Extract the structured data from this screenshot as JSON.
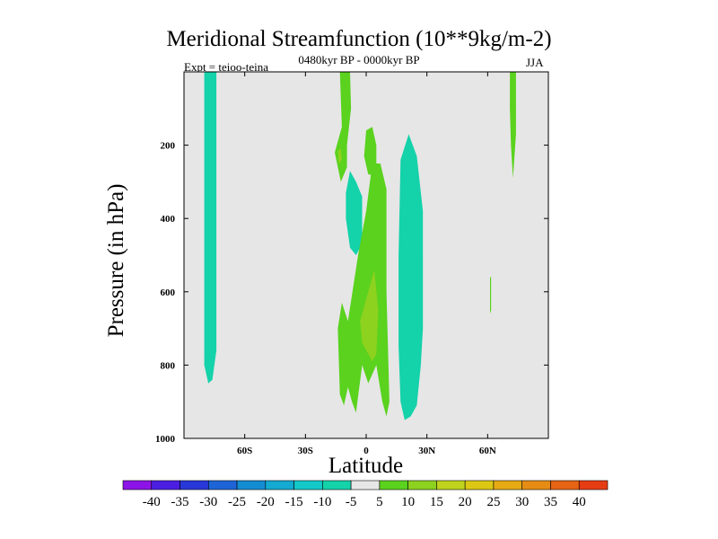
{
  "chart_data": {
    "type": "heatmap",
    "title": "Meridional Streamfunction (10**9kg/m-2)",
    "subtitle": "0480kyr BP - 0000kyr BP",
    "left_string": "Expt = teioo-teina",
    "right_string": "JJA",
    "xlabel": "Latitude",
    "ylabel": "Pressure (in hPa)",
    "xlim": [
      -90,
      90
    ],
    "ylim": [
      1000,
      0
    ],
    "x_ticks": [
      {
        "value": -60,
        "label": "60S"
      },
      {
        "value": -30,
        "label": "30S"
      },
      {
        "value": 0,
        "label": "0"
      },
      {
        "value": 30,
        "label": "30N"
      },
      {
        "value": 60,
        "label": "60N"
      }
    ],
    "y_ticks": [
      {
        "value": 200,
        "label": "200"
      },
      {
        "value": 400,
        "label": "400"
      },
      {
        "value": 600,
        "label": "600"
      },
      {
        "value": 800,
        "label": "800"
      },
      {
        "value": 1000,
        "label": "1000"
      }
    ],
    "background_color": "#e6e6e6",
    "colorbar": {
      "levels": [
        "-40",
        "-35",
        "-30",
        "-25",
        "-20",
        "-15",
        "-10",
        "-5",
        "5",
        "10",
        "15",
        "20",
        "25",
        "30",
        "35",
        "40"
      ],
      "colors": [
        "#8c14e6",
        "#4b1ee1",
        "#2837d7",
        "#1e64d7",
        "#148cd2",
        "#14aad2",
        "#14c8c8",
        "#14d2aa",
        "#e6e6e6",
        "#5ad21e",
        "#8cd21e",
        "#bed21e",
        "#dcc814",
        "#e6aa14",
        "#e68c14",
        "#e66414",
        "#e63c14"
      ]
    },
    "regions": [
      {
        "name": "contour-neg-60s-column",
        "value": -10,
        "color": "#14d2aa",
        "points": [
          [
            -80,
            0
          ],
          [
            -74,
            0
          ],
          [
            -74,
            760
          ],
          [
            -76,
            840
          ],
          [
            -78,
            850
          ],
          [
            -80,
            800
          ]
        ]
      },
      {
        "name": "contour-pos-15s-upper-column",
        "value": 5,
        "color": "#5ad21e",
        "points": [
          [
            -13,
            0
          ],
          [
            -8,
            0
          ],
          [
            -7.5,
            100
          ],
          [
            -9.5,
            200
          ],
          [
            -9.5,
            260
          ],
          [
            -12.5,
            300
          ],
          [
            -15.5,
            220
          ],
          [
            -12,
            150
          ]
        ]
      },
      {
        "name": "contour-pos-15s-upper-core",
        "value": 10,
        "color": "#8cd21e",
        "points": [
          [
            -14,
            215
          ],
          [
            -12.5,
            210
          ],
          [
            -12,
            240
          ],
          [
            -13.5,
            250
          ]
        ]
      },
      {
        "name": "contour-neg-8s-midlevel",
        "value": -5,
        "color": "#14d2aa",
        "points": [
          [
            -8,
            270
          ],
          [
            -5,
            300
          ],
          [
            -2,
            340
          ],
          [
            -2,
            470
          ],
          [
            -5,
            500
          ],
          [
            -8,
            480
          ],
          [
            -10,
            400
          ],
          [
            -10,
            330
          ]
        ]
      },
      {
        "name": "contour-pos-3n-upper",
        "value": 5,
        "color": "#5ad21e",
        "points": [
          [
            0,
            160
          ],
          [
            3,
            150
          ],
          [
            5,
            200
          ],
          [
            5,
            260
          ],
          [
            3,
            280
          ],
          [
            1,
            280
          ],
          [
            -1,
            230
          ]
        ]
      },
      {
        "name": "contour-pos-equator-lower",
        "value": 5,
        "color": "#5ad21e",
        "points": [
          [
            -12,
            630
          ],
          [
            -9,
            680
          ],
          [
            -4,
            500
          ],
          [
            0,
            380
          ],
          [
            3,
            250
          ],
          [
            7,
            250
          ],
          [
            10,
            320
          ],
          [
            10,
            600
          ],
          [
            11,
            800
          ],
          [
            11.5,
            900
          ],
          [
            10,
            940
          ],
          [
            8,
            900
          ],
          [
            5,
            800
          ],
          [
            1,
            850
          ],
          [
            -2,
            800
          ],
          [
            -5,
            930
          ],
          [
            -7,
            900
          ],
          [
            -9,
            860
          ],
          [
            -11,
            910
          ],
          [
            -13,
            880
          ],
          [
            -14,
            700
          ]
        ]
      },
      {
        "name": "contour-pos-equator-lower-core",
        "value": 10,
        "color": "#8cd21e",
        "points": [
          [
            2,
            580
          ],
          [
            4,
            540
          ],
          [
            6,
            650
          ],
          [
            5,
            770
          ],
          [
            3,
            790
          ],
          [
            1,
            770
          ],
          [
            -2,
            740
          ],
          [
            -3,
            680
          ]
        ]
      },
      {
        "name": "contour-neg-20n-column",
        "value": -10,
        "color": "#14d2aa",
        "points": [
          [
            17,
            240
          ],
          [
            21,
            170
          ],
          [
            25,
            230
          ],
          [
            28,
            380
          ],
          [
            28,
            700
          ],
          [
            27,
            800
          ],
          [
            25,
            910
          ],
          [
            22,
            940
          ],
          [
            19,
            950
          ],
          [
            17,
            900
          ],
          [
            16,
            750
          ],
          [
            16,
            500
          ]
        ]
      },
      {
        "name": "contour-pos-72n-upper",
        "value": 5,
        "color": "#5ad21e",
        "points": [
          [
            71,
            0
          ],
          [
            74,
            0
          ],
          [
            74,
            170
          ],
          [
            73,
            250
          ],
          [
            72.5,
            290
          ],
          [
            71.5,
            200
          ],
          [
            71,
            100
          ]
        ]
      },
      {
        "name": "contour-pos-62n-midlevel",
        "value": 5,
        "color": "#5ad21e",
        "points": [
          [
            61.2,
            560
          ],
          [
            61.7,
            560
          ],
          [
            61.7,
            650
          ],
          [
            61.2,
            660
          ]
        ]
      }
    ]
  }
}
